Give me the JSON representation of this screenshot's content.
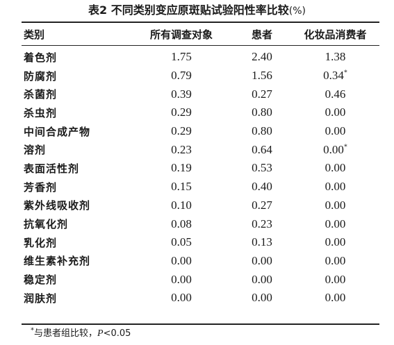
{
  "table": {
    "title": "表2  不同类别变应原斑贴试验阳性率比较",
    "unit": "(%)",
    "headers": [
      "类别",
      "所有调查对象",
      "患者",
      "化妆品消费者"
    ],
    "rows": [
      {
        "category": "着色剂",
        "all": "1.75",
        "patients": "2.40",
        "consumers": "1.38",
        "mark": ""
      },
      {
        "category": "防腐剂",
        "all": "0.79",
        "patients": "1.56",
        "consumers": "0.34",
        "mark": "*"
      },
      {
        "category": "杀菌剂",
        "all": "0.39",
        "patients": "0.27",
        "consumers": "0.46",
        "mark": ""
      },
      {
        "category": "杀虫剂",
        "all": "0.29",
        "patients": "0.80",
        "consumers": "0.00",
        "mark": ""
      },
      {
        "category": "中间合成产物",
        "all": "0.29",
        "patients": "0.80",
        "consumers": "0.00",
        "mark": ""
      },
      {
        "category": "溶剂",
        "all": "0.23",
        "patients": "0.64",
        "consumers": "0.00",
        "mark": "*"
      },
      {
        "category": "表面活性剂",
        "all": "0.19",
        "patients": "0.53",
        "consumers": "0.00",
        "mark": ""
      },
      {
        "category": "芳香剂",
        "all": "0.15",
        "patients": "0.40",
        "consumers": "0.00",
        "mark": ""
      },
      {
        "category": "紫外线吸收剂",
        "all": "0.10",
        "patients": "0.27",
        "consumers": "0.00",
        "mark": ""
      },
      {
        "category": "抗氧化剂",
        "all": "0.08",
        "patients": "0.23",
        "consumers": "0.00",
        "mark": ""
      },
      {
        "category": "乳化剂",
        "all": "0.05",
        "patients": "0.13",
        "consumers": "0.00",
        "mark": ""
      },
      {
        "category": "维生素补充剂",
        "all": "0.00",
        "patients": "0.00",
        "consumers": "0.00",
        "mark": ""
      },
      {
        "category": "稳定剂",
        "all": "0.00",
        "patients": "0.00",
        "consumers": "0.00",
        "mark": ""
      },
      {
        "category": "润肤剂",
        "all": "0.00",
        "patients": "0.00",
        "consumers": "0.00",
        "mark": ""
      }
    ],
    "footnote": {
      "symbol": "*",
      "text": "与患者组比较，",
      "p_label": "P",
      "p_value": "<0.05"
    }
  }
}
